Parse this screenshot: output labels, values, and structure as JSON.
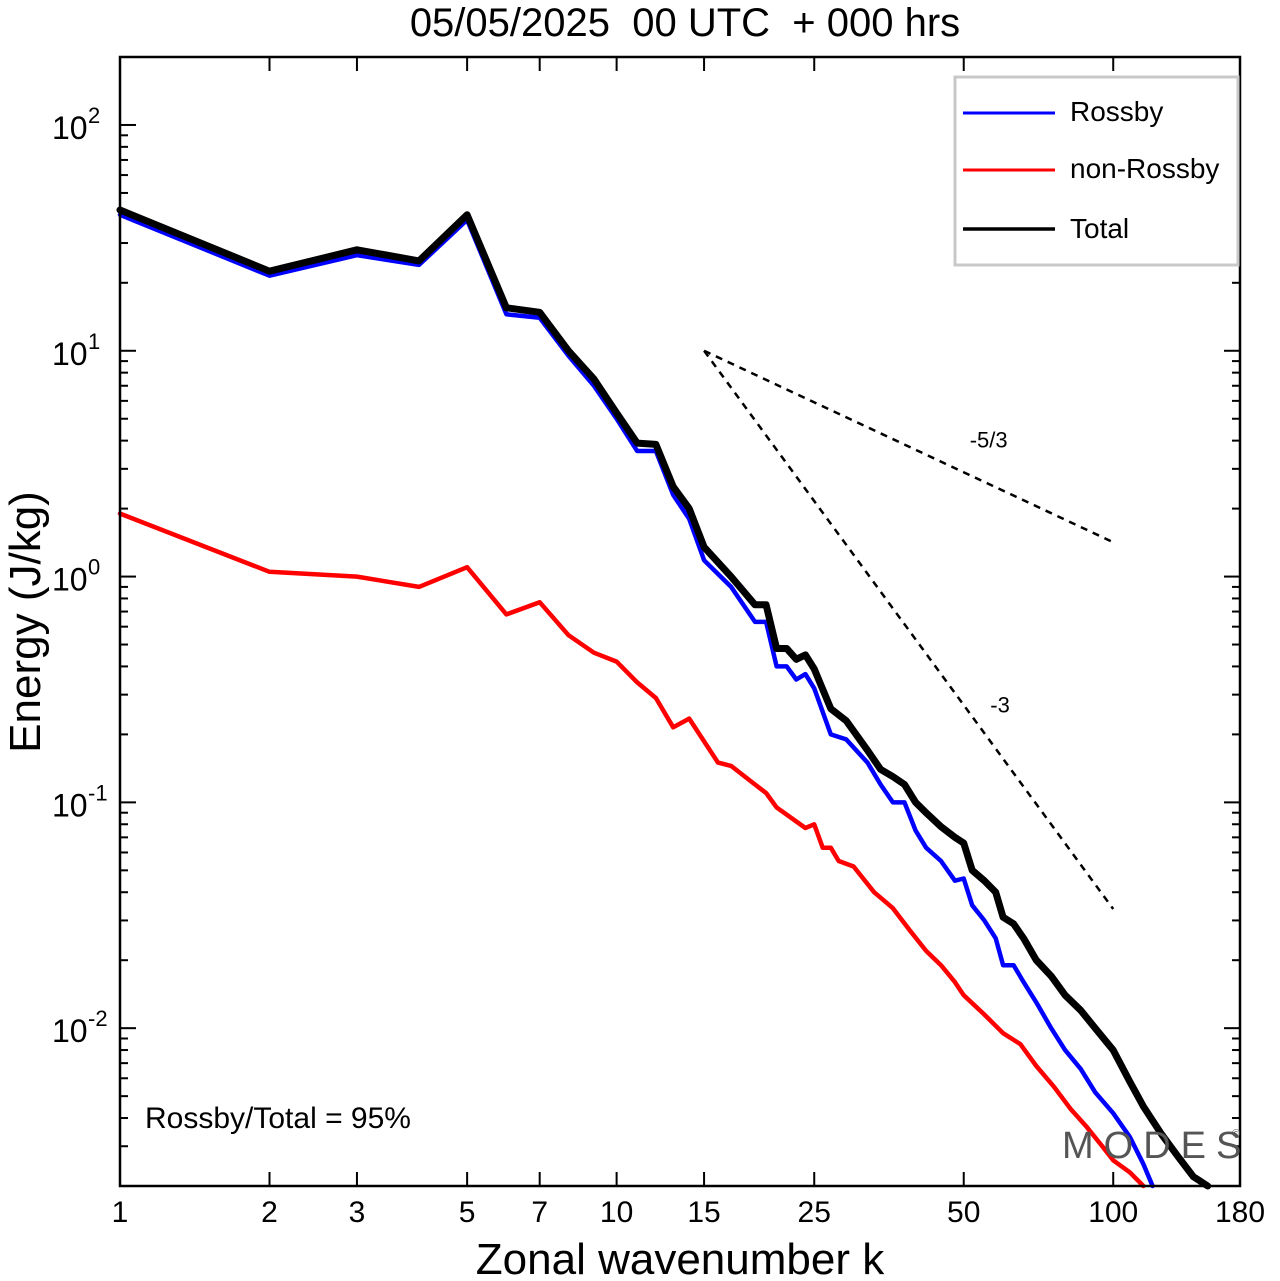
{
  "chart_data": {
    "type": "line",
    "title": "05/05/2025  00 UTC  + 000 hrs",
    "xlabel": "Zonal wavenumber k",
    "ylabel": "Energy (J/kg)",
    "x_scale": "log",
    "y_scale": "log",
    "xlim": [
      1,
      180
    ],
    "ylim": [
      0.002,
      200
    ],
    "x_ticks": [
      1,
      2,
      3,
      5,
      7,
      10,
      15,
      25,
      50,
      100,
      180
    ],
    "x_tick_labels": [
      "1",
      "2",
      "3",
      "5",
      "7",
      "10",
      "15",
      "25",
      "50",
      "100",
      "180"
    ],
    "y_ticks": [
      0.01,
      0.1,
      1,
      10,
      100
    ],
    "y_tick_bases": [
      "10",
      "10",
      "10",
      "10",
      "10"
    ],
    "y_tick_exponents": [
      "-2",
      "-1",
      "0",
      "1",
      "2"
    ],
    "legend_position": "top-right",
    "series": [
      {
        "name": "Rossby",
        "color": "#0000ff",
        "points": [
          [
            1,
            40
          ],
          [
            2,
            21.5
          ],
          [
            3,
            26.5
          ],
          [
            4,
            24
          ],
          [
            5,
            38
          ],
          [
            6,
            14.5
          ],
          [
            7,
            14
          ],
          [
            8,
            9.5
          ],
          [
            9,
            7
          ],
          [
            10,
            5
          ],
          [
            11,
            3.6
          ],
          [
            12,
            3.6
          ],
          [
            13,
            2.3
          ],
          [
            14,
            1.8
          ],
          [
            15,
            1.18
          ],
          [
            17,
            0.9
          ],
          [
            19,
            0.63
          ],
          [
            20,
            0.63
          ],
          [
            21,
            0.4
          ],
          [
            22,
            0.4
          ],
          [
            23,
            0.35
          ],
          [
            24,
            0.37
          ],
          [
            25,
            0.32
          ],
          [
            27,
            0.2
          ],
          [
            29,
            0.19
          ],
          [
            32,
            0.15
          ],
          [
            34,
            0.12
          ],
          [
            36,
            0.1
          ],
          [
            38,
            0.1
          ],
          [
            40,
            0.075
          ],
          [
            42,
            0.063
          ],
          [
            45,
            0.055
          ],
          [
            48,
            0.045
          ],
          [
            50,
            0.046
          ],
          [
            52,
            0.035
          ],
          [
            55,
            0.03
          ],
          [
            58,
            0.025
          ],
          [
            60,
            0.019
          ],
          [
            63,
            0.019
          ],
          [
            66,
            0.016
          ],
          [
            70,
            0.013
          ],
          [
            75,
            0.01
          ],
          [
            80,
            0.008
          ],
          [
            86,
            0.0066
          ],
          [
            92,
            0.0052
          ],
          [
            100,
            0.0042
          ],
          [
            108,
            0.0033
          ],
          [
            115,
            0.0025
          ],
          [
            120,
            0.002
          ]
        ]
      },
      {
        "name": "non-Rossby",
        "color": "#ff0000",
        "points": [
          [
            1,
            1.9
          ],
          [
            2,
            1.05
          ],
          [
            3,
            1.0
          ],
          [
            4,
            0.9
          ],
          [
            5,
            1.1
          ],
          [
            6,
            0.68
          ],
          [
            7,
            0.77
          ],
          [
            8,
            0.55
          ],
          [
            9,
            0.46
          ],
          [
            10,
            0.42
          ],
          [
            11,
            0.34
          ],
          [
            12,
            0.29
          ],
          [
            13,
            0.215
          ],
          [
            14,
            0.235
          ],
          [
            16,
            0.15
          ],
          [
            17,
            0.145
          ],
          [
            19,
            0.12
          ],
          [
            20,
            0.11
          ],
          [
            21,
            0.095
          ],
          [
            24,
            0.077
          ],
          [
            25,
            0.08
          ],
          [
            26,
            0.063
          ],
          [
            27,
            0.063
          ],
          [
            28,
            0.055
          ],
          [
            30,
            0.052
          ],
          [
            33,
            0.04
          ],
          [
            36,
            0.034
          ],
          [
            39,
            0.027
          ],
          [
            42,
            0.022
          ],
          [
            45,
            0.019
          ],
          [
            48,
            0.016
          ],
          [
            50,
            0.014
          ],
          [
            55,
            0.0115
          ],
          [
            60,
            0.0095
          ],
          [
            65,
            0.0085
          ],
          [
            70,
            0.0068
          ],
          [
            76,
            0.0055
          ],
          [
            82,
            0.0044
          ],
          [
            88,
            0.0037
          ],
          [
            95,
            0.003
          ],
          [
            100,
            0.0026
          ],
          [
            108,
            0.0023
          ],
          [
            115,
            0.002
          ]
        ]
      },
      {
        "name": "Total",
        "color": "#000000",
        "points": [
          [
            1,
            42
          ],
          [
            2,
            22.5
          ],
          [
            3,
            28
          ],
          [
            4,
            25
          ],
          [
            5,
            40
          ],
          [
            6,
            15.5
          ],
          [
            7,
            14.8
          ],
          [
            8,
            10
          ],
          [
            9,
            7.5
          ],
          [
            10,
            5.3
          ],
          [
            11,
            3.9
          ],
          [
            12,
            3.85
          ],
          [
            13,
            2.5
          ],
          [
            14,
            2.0
          ],
          [
            15,
            1.35
          ],
          [
            17,
            1.0
          ],
          [
            19,
            0.75
          ],
          [
            20,
            0.75
          ],
          [
            21,
            0.48
          ],
          [
            22,
            0.48
          ],
          [
            23,
            0.43
          ],
          [
            24,
            0.45
          ],
          [
            25,
            0.39
          ],
          [
            27,
            0.26
          ],
          [
            29,
            0.23
          ],
          [
            32,
            0.17
          ],
          [
            34,
            0.14
          ],
          [
            36,
            0.13
          ],
          [
            38,
            0.12
          ],
          [
            40,
            0.1
          ],
          [
            42,
            0.09
          ],
          [
            45,
            0.078
          ],
          [
            48,
            0.07
          ],
          [
            50,
            0.066
          ],
          [
            52,
            0.05
          ],
          [
            55,
            0.045
          ],
          [
            58,
            0.04
          ],
          [
            60,
            0.031
          ],
          [
            63,
            0.029
          ],
          [
            66,
            0.025
          ],
          [
            70,
            0.02
          ],
          [
            75,
            0.017
          ],
          [
            80,
            0.014
          ],
          [
            86,
            0.012
          ],
          [
            92,
            0.01
          ],
          [
            100,
            0.008
          ],
          [
            108,
            0.0058
          ],
          [
            115,
            0.0045
          ],
          [
            125,
            0.0034
          ],
          [
            135,
            0.0027
          ],
          [
            145,
            0.0022
          ],
          [
            155,
            0.002
          ]
        ]
      }
    ],
    "reference_lines": [
      {
        "label": "-5/3",
        "points": [
          [
            15,
            10
          ],
          [
            100,
            1.42
          ]
        ]
      },
      {
        "label": "-3",
        "points": [
          [
            15,
            10
          ],
          [
            100,
            0.0337
          ]
        ]
      }
    ],
    "annotations": [
      {
        "text": "Rossby/Total = 95%"
      }
    ],
    "watermark": "MODES"
  }
}
